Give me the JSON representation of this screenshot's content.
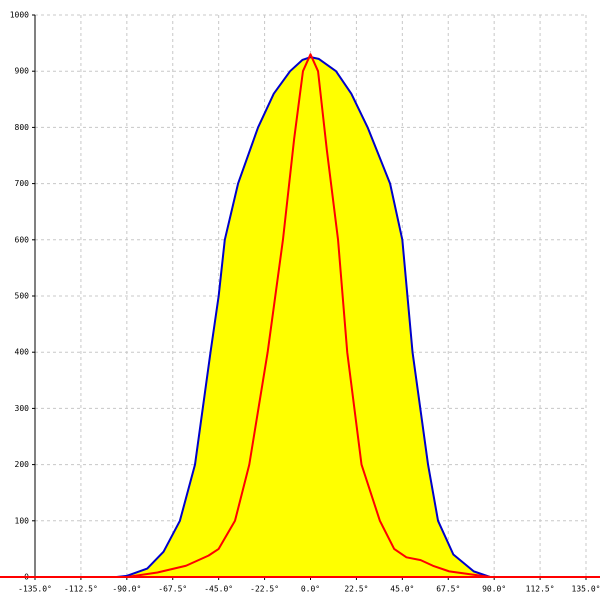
{
  "chart_data": {
    "type": "area",
    "series": [
      {
        "color": "#0000cc",
        "fill": "#ffff00",
        "x": [
          -95,
          -90,
          -80,
          -72,
          -64,
          -56.6,
          -49,
          -45,
          -42,
          -35.5,
          -25.7,
          -18,
          -10,
          -4,
          0,
          4,
          12.5,
          20,
          28,
          39,
          45,
          50,
          57.6,
          62.5,
          70,
          80,
          88,
          95
        ],
        "values": [
          0,
          2,
          15,
          45,
          100,
          200,
          400,
          500,
          600,
          700,
          800,
          860,
          900,
          920,
          925,
          922,
          900,
          860,
          800,
          700,
          600,
          400,
          200,
          100,
          40,
          10,
          0,
          0
        ]
      },
      {
        "color": "#ff0000",
        "x": [
          -95,
          -90,
          -75,
          -61,
          -50,
          -45,
          -37,
          -30,
          -21,
          -13.5,
          -8,
          -3.7,
          0,
          3.7,
          8,
          13.5,
          18,
          25,
          34,
          41,
          47,
          54,
          60,
          68,
          80,
          88,
          95
        ],
        "values": [
          0,
          0,
          8,
          20,
          38,
          50,
          100,
          200,
          400,
          600,
          780,
          900,
          930,
          900,
          760,
          600,
          400,
          200,
          100,
          50,
          35,
          30,
          20,
          10,
          4,
          0,
          0
        ]
      }
    ],
    "xlim": [
      -135,
      135
    ],
    "ylim": [
      0,
      1000
    ],
    "xticks": [
      {
        "value": -135,
        "label": "-135.0°"
      },
      {
        "value": -112.5,
        "label": "-112.5°"
      },
      {
        "value": -90,
        "label": "-90.0°"
      },
      {
        "value": -67.5,
        "label": "-67.5°"
      },
      {
        "value": -45,
        "label": "-45.0°"
      },
      {
        "value": -22.5,
        "label": "-22.5°"
      },
      {
        "value": 0,
        "label": "0.0°"
      },
      {
        "value": 22.5,
        "label": "22.5°"
      },
      {
        "value": 45,
        "label": "45.0°"
      },
      {
        "value": 67.5,
        "label": "67.5°"
      },
      {
        "value": 90,
        "label": "90.0°"
      },
      {
        "value": 112.5,
        "label": "112.5°"
      },
      {
        "value": 135,
        "label": "135.0°"
      }
    ],
    "yticks": [
      0,
      100,
      200,
      300,
      400,
      500,
      600,
      700,
      800,
      900,
      1000
    ],
    "grid": true
  }
}
